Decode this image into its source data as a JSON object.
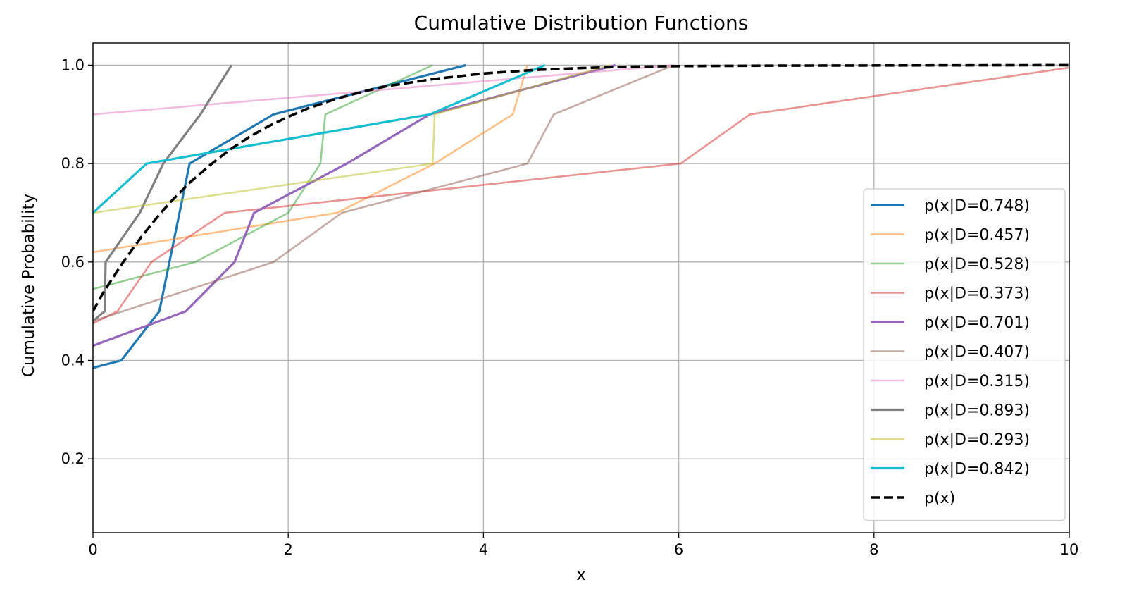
{
  "chart_data": {
    "type": "line",
    "title": "Cumulative Distribution Functions",
    "xlabel": "x",
    "ylabel": "Cumulative Probability",
    "xlim": [
      0,
      10
    ],
    "ylim": [
      0.05,
      1.045
    ],
    "xticks": [
      "0",
      "2",
      "4",
      "6",
      "8",
      "10"
    ],
    "xtick_values": [
      0,
      2,
      4,
      6,
      8,
      10
    ],
    "yticks": [
      "0.2",
      "0.4",
      "0.6",
      "0.8",
      "1.0"
    ],
    "ytick_values": [
      0.2,
      0.4,
      0.6,
      0.8,
      1.0
    ],
    "grid": true,
    "legend_position": "center-right",
    "series": [
      {
        "name": "p(x|D=0.748)",
        "color": "#1f77b4",
        "opacity": 1.0,
        "width": 3.2,
        "dashed": false,
        "points": [
          [
            0,
            0.385
          ],
          [
            0.29,
            0.4
          ],
          [
            0.68,
            0.5
          ],
          [
            0.99,
            0.8
          ],
          [
            1.85,
            0.9
          ],
          [
            3.82,
            1.0
          ]
        ]
      },
      {
        "name": "p(x|D=0.457)",
        "color": "#ff7f0e",
        "opacity": 0.5,
        "width": 2.6,
        "dashed": false,
        "points": [
          [
            0,
            0.62
          ],
          [
            2.5,
            0.7
          ],
          [
            3.5,
            0.8
          ],
          [
            4.3,
            0.9
          ],
          [
            4.45,
            1.0
          ]
        ]
      },
      {
        "name": "p(x|D=0.528)",
        "color": "#2ca02c",
        "opacity": 0.5,
        "width": 2.6,
        "dashed": false,
        "points": [
          [
            0,
            0.545
          ],
          [
            1.05,
            0.6
          ],
          [
            2.0,
            0.7
          ],
          [
            2.33,
            0.8
          ],
          [
            2.38,
            0.9
          ],
          [
            3.48,
            1.0
          ]
        ]
      },
      {
        "name": "p(x|D=0.373)",
        "color": "#d62728",
        "opacity": 0.5,
        "width": 2.6,
        "dashed": false,
        "points": [
          [
            0,
            0.475
          ],
          [
            0.25,
            0.5
          ],
          [
            0.6,
            0.6
          ],
          [
            1.35,
            0.7
          ],
          [
            6.02,
            0.8
          ],
          [
            6.73,
            0.9
          ],
          [
            10.0,
            0.995
          ]
        ]
      },
      {
        "name": "p(x|D=0.701)",
        "color": "#9467bd",
        "opacity": 1.0,
        "width": 3.2,
        "dashed": false,
        "points": [
          [
            0,
            0.43
          ],
          [
            0.95,
            0.5
          ],
          [
            1.45,
            0.6
          ],
          [
            1.65,
            0.7
          ],
          [
            2.6,
            0.8
          ],
          [
            3.45,
            0.9
          ],
          [
            5.35,
            1.0
          ]
        ]
      },
      {
        "name": "p(x|D=0.407)",
        "color": "#8c564b",
        "opacity": 0.5,
        "width": 2.6,
        "dashed": false,
        "points": [
          [
            0,
            0.48
          ],
          [
            1.85,
            0.6
          ],
          [
            2.55,
            0.7
          ],
          [
            4.45,
            0.8
          ],
          [
            4.72,
            0.9
          ],
          [
            5.95,
            1.0
          ]
        ]
      },
      {
        "name": "p(x|D=0.315)",
        "color": "#e377c2",
        "opacity": 0.5,
        "width": 2.6,
        "dashed": false,
        "points": [
          [
            0,
            0.9
          ],
          [
            5.95,
            1.0
          ]
        ]
      },
      {
        "name": "p(x|D=0.893)",
        "color": "#7f7f7f",
        "opacity": 1.0,
        "width": 3.2,
        "dashed": false,
        "points": [
          [
            0,
            0.48
          ],
          [
            0.12,
            0.5
          ],
          [
            0.13,
            0.6
          ],
          [
            0.48,
            0.7
          ],
          [
            0.72,
            0.8
          ],
          [
            1.1,
            0.9
          ],
          [
            1.42,
            1.0
          ]
        ]
      },
      {
        "name": "p(x|D=0.293)",
        "color": "#bcbd22",
        "opacity": 0.5,
        "width": 2.6,
        "dashed": false,
        "points": [
          [
            0,
            0.7
          ],
          [
            3.48,
            0.8
          ],
          [
            3.5,
            0.9
          ],
          [
            5.3,
            1.0
          ]
        ]
      },
      {
        "name": "p(x|D=0.842)",
        "color": "#17becf",
        "opacity": 1.0,
        "width": 3.2,
        "dashed": false,
        "points": [
          [
            0,
            0.7
          ],
          [
            0.55,
            0.8
          ],
          [
            3.45,
            0.9
          ],
          [
            4.63,
            1.0
          ]
        ]
      },
      {
        "name": "p(x)",
        "color": "#000000",
        "opacity": 1.0,
        "width": 3.6,
        "dashed": true,
        "points": [
          [
            0,
            0.5
          ],
          [
            0.1,
            0.536
          ],
          [
            0.2,
            0.567
          ],
          [
            0.3,
            0.597
          ],
          [
            0.4,
            0.625
          ],
          [
            0.5,
            0.652
          ],
          [
            0.6,
            0.677
          ],
          [
            0.7,
            0.701
          ],
          [
            0.8,
            0.723
          ],
          [
            1.0,
            0.763
          ],
          [
            1.2,
            0.797
          ],
          [
            1.4,
            0.828
          ],
          [
            1.6,
            0.854
          ],
          [
            1.8,
            0.876
          ],
          [
            2.0,
            0.895
          ],
          [
            2.2,
            0.912
          ],
          [
            2.5,
            0.932
          ],
          [
            2.8,
            0.948
          ],
          [
            3.0,
            0.957
          ],
          [
            3.5,
            0.972
          ],
          [
            4.0,
            0.983
          ],
          [
            4.5,
            0.99
          ],
          [
            5.0,
            0.994
          ],
          [
            5.5,
            0.997
          ],
          [
            6.0,
            0.998
          ],
          [
            7.0,
            0.999
          ],
          [
            10.0,
            1.0
          ]
        ]
      }
    ]
  }
}
